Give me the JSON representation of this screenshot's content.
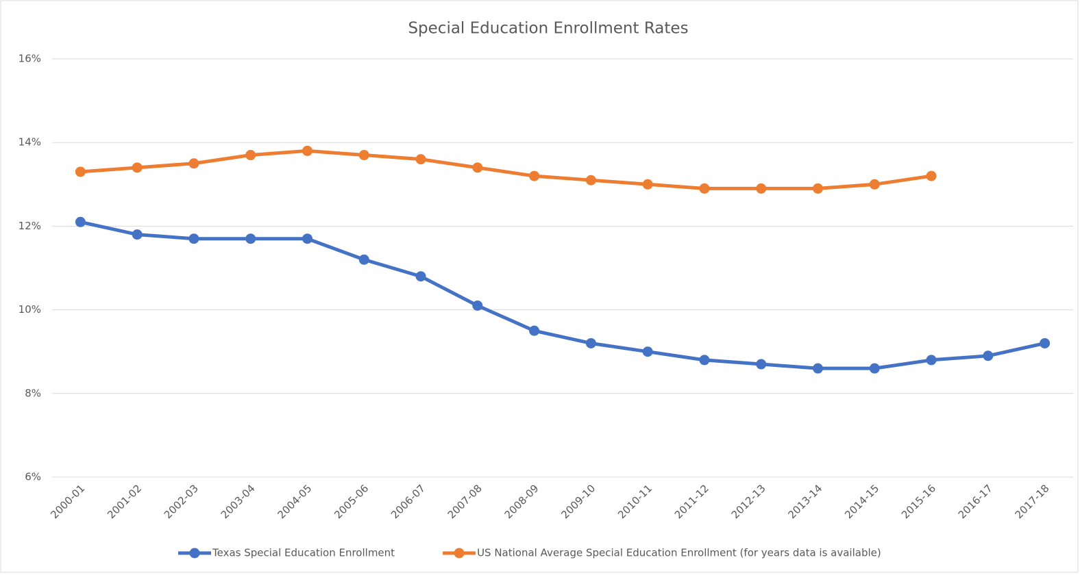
{
  "chart_data": {
    "type": "line",
    "title": "Special Education Enrollment Rates",
    "categories": [
      "2000-01",
      "2001-02",
      "2002-03",
      "2003-04",
      "2004-05",
      "2005-06",
      "2006-07",
      "2007-08",
      "2008-09",
      "2009-10",
      "2010-11",
      "2011-12",
      "2012-13",
      "2013-14",
      "2014-15",
      "2015-16",
      "2016-17",
      "2017-18"
    ],
    "series": [
      {
        "name": "Texas Special Education Enrollment",
        "color": "#4472c4",
        "values": [
          12.1,
          11.8,
          11.7,
          11.7,
          11.7,
          11.2,
          10.8,
          10.1,
          9.5,
          9.2,
          9.0,
          8.8,
          8.7,
          8.6,
          8.6,
          8.8,
          8.9,
          9.2
        ]
      },
      {
        "name": "US National Average Special Education Enrollment (for years data is available)",
        "color": "#ed7d31",
        "values": [
          13.3,
          13.4,
          13.5,
          13.7,
          13.8,
          13.7,
          13.6,
          13.4,
          13.2,
          13.1,
          13.0,
          12.9,
          12.9,
          12.9,
          13.0,
          13.2,
          null,
          null
        ]
      }
    ],
    "ylim": [
      6,
      16
    ],
    "yticks": [
      {
        "value": 6,
        "label": "6%"
      },
      {
        "value": 8,
        "label": "8%"
      },
      {
        "value": 10,
        "label": "10%"
      },
      {
        "value": 12,
        "label": "12%"
      },
      {
        "value": 14,
        "label": "14%"
      },
      {
        "value": 16,
        "label": "16%"
      }
    ],
    "grid": true,
    "legend": "bottom"
  }
}
